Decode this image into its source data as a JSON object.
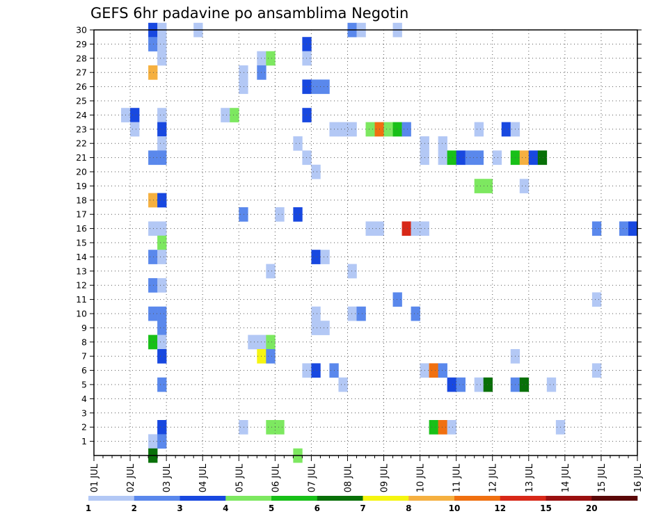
{
  "chart_data": {
    "type": "heatmap",
    "title": "GEFS 6hr padavine po ansamblima Negotin",
    "x_tick_labels": [
      "01 JUL",
      "02 JUL",
      "03 JUL",
      "04 JUL",
      "05 JUL",
      "06 JUL",
      "07 JUL",
      "08 JUL",
      "09 JUL",
      "10 JUL",
      "11 JUL",
      "12 JUL",
      "13 JUL",
      "14 JUL",
      "15 JUL",
      "16 JUL"
    ],
    "x_range_days": [
      1,
      16
    ],
    "y_tick_labels": [
      "1",
      "2",
      "3",
      "4",
      "5",
      "6",
      "7",
      "8",
      "9",
      "10",
      "11",
      "12",
      "13",
      "14",
      "15",
      "16",
      "17",
      "18",
      "19",
      "20",
      "21",
      "22",
      "23",
      "24",
      "25",
      "26",
      "27",
      "28",
      "29",
      "30"
    ],
    "y_range": [
      0,
      30
    ],
    "grid": true,
    "legend": {
      "placement": "bottom",
      "labels": [
        "1",
        "2",
        "3",
        "4",
        "5",
        "6",
        "7",
        "8",
        "10",
        "12",
        "15",
        "20"
      ],
      "colors": [
        "#b3c8f5",
        "#5a88ec",
        "#1848e0",
        "#7de860",
        "#18c018",
        "#087008",
        "#f5f510",
        "#f5b040",
        "#f07010",
        "#d82818",
        "#9a1010",
        "#5a0808"
      ]
    },
    "cells": [
      {
        "member": 30,
        "day": 2.5,
        "level": 2
      },
      {
        "member": 30,
        "day": 2.75,
        "level": 0
      },
      {
        "member": 30,
        "day": 3.75,
        "level": 0
      },
      {
        "member": 30,
        "day": 8.0,
        "level": 1
      },
      {
        "member": 30,
        "day": 8.25,
        "level": 0
      },
      {
        "member": 30,
        "day": 9.25,
        "level": 0
      },
      {
        "member": 29,
        "day": 2.5,
        "level": 1
      },
      {
        "member": 29,
        "day": 2.75,
        "level": 0
      },
      {
        "member": 29,
        "day": 6.75,
        "level": 2
      },
      {
        "member": 28,
        "day": 2.75,
        "level": 0
      },
      {
        "member": 28,
        "day": 5.5,
        "level": 0
      },
      {
        "member": 28,
        "day": 5.75,
        "level": 3
      },
      {
        "member": 28,
        "day": 6.75,
        "level": 0
      },
      {
        "member": 27,
        "day": 2.5,
        "level": 7
      },
      {
        "member": 27,
        "day": 5.0,
        "level": 0
      },
      {
        "member": 27,
        "day": 5.5,
        "level": 1
      },
      {
        "member": 26,
        "day": 5.0,
        "level": 0
      },
      {
        "member": 26,
        "day": 6.75,
        "level": 2
      },
      {
        "member": 26,
        "day": 7.0,
        "level": 1
      },
      {
        "member": 26,
        "day": 7.25,
        "level": 1
      },
      {
        "member": 24,
        "day": 1.75,
        "level": 0
      },
      {
        "member": 24,
        "day": 2.0,
        "level": 2
      },
      {
        "member": 24,
        "day": 2.75,
        "level": 0
      },
      {
        "member": 24,
        "day": 4.5,
        "level": 0
      },
      {
        "member": 24,
        "day": 4.75,
        "level": 3
      },
      {
        "member": 24,
        "day": 6.75,
        "level": 2
      },
      {
        "member": 23,
        "day": 2.0,
        "level": 0
      },
      {
        "member": 23,
        "day": 2.75,
        "level": 2
      },
      {
        "member": 23,
        "day": 7.5,
        "level": 0
      },
      {
        "member": 23,
        "day": 7.75,
        "level": 0
      },
      {
        "member": 23,
        "day": 8.0,
        "level": 0
      },
      {
        "member": 23,
        "day": 8.5,
        "level": 3
      },
      {
        "member": 23,
        "day": 8.75,
        "level": 8
      },
      {
        "member": 23,
        "day": 9.0,
        "level": 3
      },
      {
        "member": 23,
        "day": 9.25,
        "level": 4
      },
      {
        "member": 23,
        "day": 9.5,
        "level": 1
      },
      {
        "member": 23,
        "day": 11.5,
        "level": 0
      },
      {
        "member": 23,
        "day": 12.25,
        "level": 2
      },
      {
        "member": 23,
        "day": 12.5,
        "level": 0
      },
      {
        "member": 22,
        "day": 2.75,
        "level": 0
      },
      {
        "member": 22,
        "day": 6.5,
        "level": 0
      },
      {
        "member": 22,
        "day": 10.0,
        "level": 0
      },
      {
        "member": 22,
        "day": 10.5,
        "level": 0
      },
      {
        "member": 21,
        "day": 2.5,
        "level": 1
      },
      {
        "member": 21,
        "day": 2.75,
        "level": 1
      },
      {
        "member": 21,
        "day": 6.75,
        "level": 0
      },
      {
        "member": 21,
        "day": 10.0,
        "level": 0
      },
      {
        "member": 21,
        "day": 10.5,
        "level": 0
      },
      {
        "member": 21,
        "day": 10.75,
        "level": 4
      },
      {
        "member": 21,
        "day": 11.0,
        "level": 2
      },
      {
        "member": 21,
        "day": 11.25,
        "level": 1
      },
      {
        "member": 21,
        "day": 11.5,
        "level": 1
      },
      {
        "member": 21,
        "day": 12.0,
        "level": 0
      },
      {
        "member": 21,
        "day": 12.5,
        "level": 4
      },
      {
        "member": 21,
        "day": 12.75,
        "level": 7
      },
      {
        "member": 21,
        "day": 13.0,
        "level": 2
      },
      {
        "member": 21,
        "day": 13.25,
        "level": 5
      },
      {
        "member": 20,
        "day": 7.0,
        "level": 0
      },
      {
        "member": 19,
        "day": 11.5,
        "level": 3
      },
      {
        "member": 19,
        "day": 11.75,
        "level": 3
      },
      {
        "member": 19,
        "day": 12.75,
        "level": 0
      },
      {
        "member": 18,
        "day": 2.5,
        "level": 7
      },
      {
        "member": 18,
        "day": 2.75,
        "level": 2
      },
      {
        "member": 17,
        "day": 5.0,
        "level": 1
      },
      {
        "member": 17,
        "day": 6.0,
        "level": 0
      },
      {
        "member": 17,
        "day": 6.5,
        "level": 2
      },
      {
        "member": 16,
        "day": 2.5,
        "level": 0
      },
      {
        "member": 16,
        "day": 2.75,
        "level": 0
      },
      {
        "member": 16,
        "day": 8.5,
        "level": 0
      },
      {
        "member": 16,
        "day": 8.75,
        "level": 0
      },
      {
        "member": 16,
        "day": 9.5,
        "level": 9
      },
      {
        "member": 16,
        "day": 9.75,
        "level": 0
      },
      {
        "member": 16,
        "day": 10.0,
        "level": 0
      },
      {
        "member": 16,
        "day": 14.75,
        "level": 1
      },
      {
        "member": 16,
        "day": 15.5,
        "level": 1
      },
      {
        "member": 16,
        "day": 15.75,
        "level": 2
      },
      {
        "member": 15,
        "day": 2.75,
        "level": 3
      },
      {
        "member": 14,
        "day": 7.0,
        "level": 2
      },
      {
        "member": 14,
        "day": 7.25,
        "level": 0
      },
      {
        "member": 14,
        "day": 2.5,
        "level": 1
      },
      {
        "member": 14,
        "day": 2.75,
        "level": 0
      },
      {
        "member": 13,
        "day": 5.75,
        "level": 0
      },
      {
        "member": 13,
        "day": 8.0,
        "level": 0
      },
      {
        "member": 12,
        "day": 2.5,
        "level": 1
      },
      {
        "member": 12,
        "day": 2.75,
        "level": 0
      },
      {
        "member": 11,
        "day": 9.25,
        "level": 1
      },
      {
        "member": 11,
        "day": 14.75,
        "level": 0
      },
      {
        "member": 10,
        "day": 2.5,
        "level": 1
      },
      {
        "member": 10,
        "day": 2.75,
        "level": 1
      },
      {
        "member": 10,
        "day": 7.0,
        "level": 0
      },
      {
        "member": 10,
        "day": 8.0,
        "level": 0
      },
      {
        "member": 10,
        "day": 8.25,
        "level": 1
      },
      {
        "member": 10,
        "day": 9.75,
        "level": 1
      },
      {
        "member": 9,
        "day": 2.75,
        "level": 1
      },
      {
        "member": 9,
        "day": 7.0,
        "level": 0
      },
      {
        "member": 9,
        "day": 7.25,
        "level": 0
      },
      {
        "member": 8,
        "day": 2.5,
        "level": 4
      },
      {
        "member": 8,
        "day": 2.75,
        "level": 0
      },
      {
        "member": 8,
        "day": 5.25,
        "level": 0
      },
      {
        "member": 8,
        "day": 5.5,
        "level": 0
      },
      {
        "member": 8,
        "day": 5.75,
        "level": 3
      },
      {
        "member": 7,
        "day": 2.75,
        "level": 2
      },
      {
        "member": 7,
        "day": 5.5,
        "level": 6
      },
      {
        "member": 7,
        "day": 5.75,
        "level": 1
      },
      {
        "member": 7,
        "day": 12.5,
        "level": 0
      },
      {
        "member": 6,
        "day": 6.75,
        "level": 0
      },
      {
        "member": 6,
        "day": 7.0,
        "level": 2
      },
      {
        "member": 6,
        "day": 7.5,
        "level": 1
      },
      {
        "member": 6,
        "day": 10.0,
        "level": 0
      },
      {
        "member": 6,
        "day": 10.25,
        "level": 8
      },
      {
        "member": 6,
        "day": 10.5,
        "level": 1
      },
      {
        "member": 6,
        "day": 14.75,
        "level": 0
      },
      {
        "member": 5,
        "day": 2.75,
        "level": 1
      },
      {
        "member": 5,
        "day": 7.75,
        "level": 0
      },
      {
        "member": 5,
        "day": 10.75,
        "level": 2
      },
      {
        "member": 5,
        "day": 11.0,
        "level": 1
      },
      {
        "member": 5,
        "day": 11.5,
        "level": 0
      },
      {
        "member": 5,
        "day": 11.75,
        "level": 5
      },
      {
        "member": 5,
        "day": 12.5,
        "level": 1
      },
      {
        "member": 5,
        "day": 12.75,
        "level": 5
      },
      {
        "member": 5,
        "day": 13.5,
        "level": 0
      },
      {
        "member": 2,
        "day": 2.75,
        "level": 2
      },
      {
        "member": 2,
        "day": 5.0,
        "level": 0
      },
      {
        "member": 2,
        "day": 5.75,
        "level": 3
      },
      {
        "member": 2,
        "day": 6.0,
        "level": 3
      },
      {
        "member": 2,
        "day": 10.25,
        "level": 4
      },
      {
        "member": 2,
        "day": 10.5,
        "level": 8
      },
      {
        "member": 2,
        "day": 10.75,
        "level": 0
      },
      {
        "member": 2,
        "day": 13.75,
        "level": 0
      },
      {
        "member": 1,
        "day": 2.5,
        "level": 0
      },
      {
        "member": 1,
        "day": 2.75,
        "level": 1
      },
      {
        "member": 0,
        "day": 2.5,
        "level": 5
      },
      {
        "member": 0,
        "day": 6.5,
        "level": 3
      }
    ]
  }
}
